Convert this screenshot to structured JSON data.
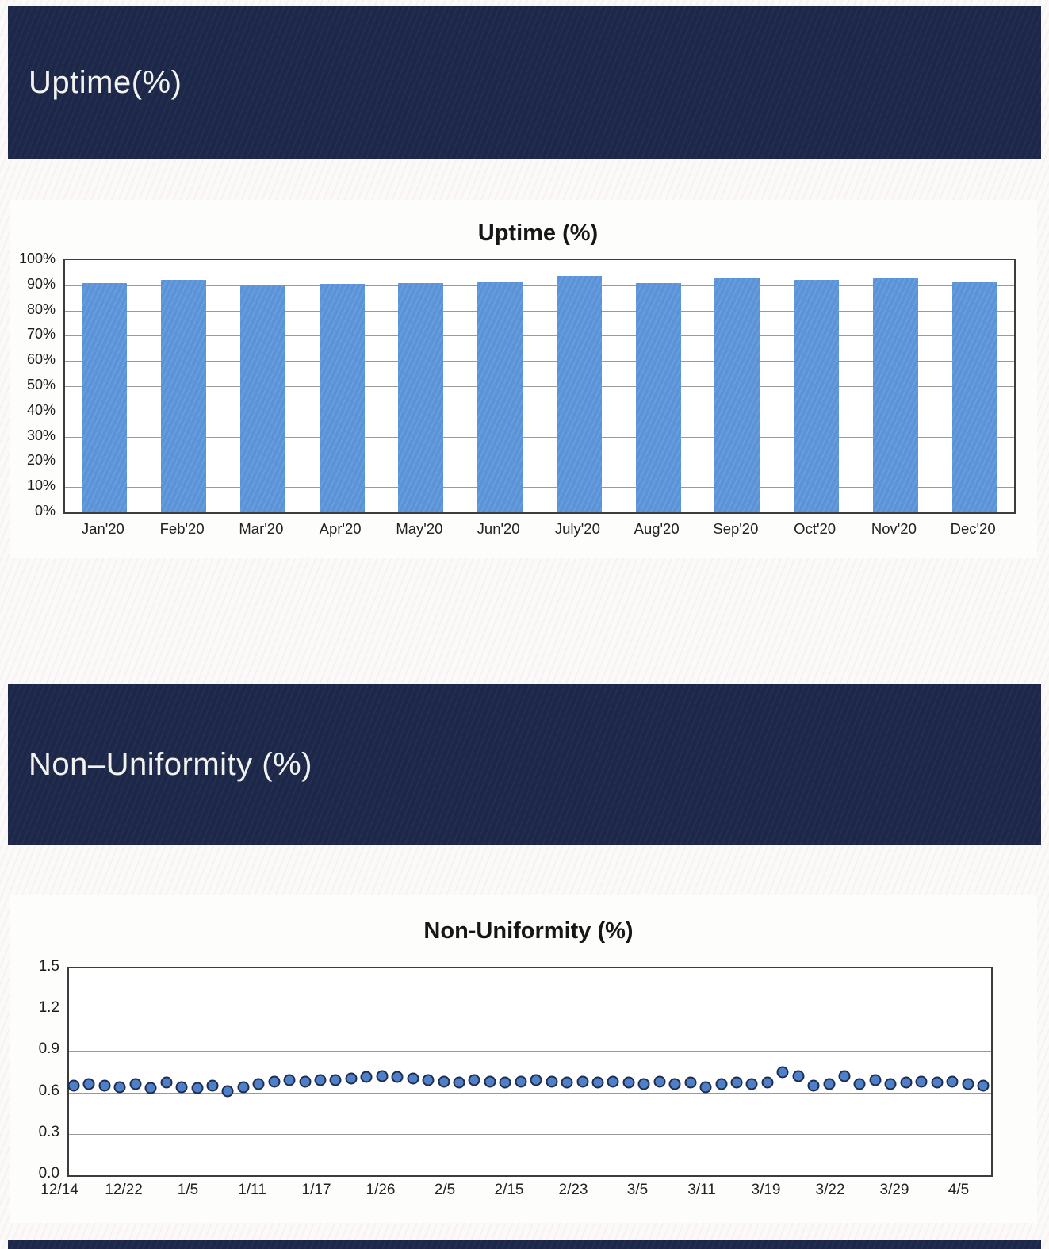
{
  "sections": {
    "section1_header": "Uptime(%)",
    "section2_header": "Non–Uniformity (%)"
  },
  "colors": {
    "band_navy": "#1c2749",
    "bar_blue": "#5b93d8",
    "point_fill": "#4e80ca",
    "point_border": "#1d2c4f",
    "gridline_gray": "#9a9a9a",
    "plot_border": "#3c3c3c"
  },
  "chart_data": [
    {
      "type": "bar",
      "title": "Uptime (%)",
      "categories": [
        "Jan'20",
        "Feb'20",
        "Mar'20",
        "Apr'20",
        "May'20",
        "Jun'20",
        "July'20",
        "Aug'20",
        "Sep'20",
        "Oct'20",
        "Nov'20",
        "Dec'20"
      ],
      "values": [
        91,
        92,
        90.4,
        90.5,
        91,
        91.4,
        93.7,
        91,
        92.9,
        92,
        92.9,
        91.5
      ],
      "xlabel": "",
      "ylabel": "",
      "ylim": [
        0,
        100
      ],
      "ytick_labels": [
        "0%",
        "10%",
        "20%",
        "30%",
        "40%",
        "50%",
        "60%",
        "70%",
        "80%",
        "90%",
        "100%"
      ],
      "grid": true,
      "legend_position": "none"
    },
    {
      "type": "scatter",
      "title": "Non-Uniformity (%)",
      "x_tick_labels": [
        "12/14",
        "12/22",
        "1/5",
        "1/11",
        "1/17",
        "1/26",
        "2/5",
        "2/15",
        "2/23",
        "3/5",
        "3/11",
        "3/19",
        "3/22",
        "3/29",
        "4/5"
      ],
      "y": [
        0.65,
        0.66,
        0.65,
        0.64,
        0.66,
        0.63,
        0.67,
        0.64,
        0.63,
        0.65,
        0.61,
        0.64,
        0.66,
        0.68,
        0.69,
        0.68,
        0.69,
        0.69,
        0.7,
        0.71,
        0.72,
        0.71,
        0.7,
        0.69,
        0.68,
        0.67,
        0.69,
        0.68,
        0.67,
        0.68,
        0.69,
        0.68,
        0.67,
        0.68,
        0.67,
        0.68,
        0.67,
        0.66,
        0.68,
        0.66,
        0.67,
        0.64,
        0.66,
        0.67,
        0.66,
        0.67,
        0.75,
        0.72,
        0.65,
        0.66,
        0.72,
        0.66,
        0.69,
        0.66,
        0.67,
        0.68,
        0.67,
        0.68,
        0.66,
        0.65
      ],
      "xlabel": "",
      "ylabel": "",
      "ylim": [
        0,
        1.5
      ],
      "ytick_labels": [
        "0.0",
        "0.3",
        "0.6",
        "0.9",
        "1.2",
        "1.5"
      ],
      "grid": true,
      "legend_position": "none"
    }
  ]
}
